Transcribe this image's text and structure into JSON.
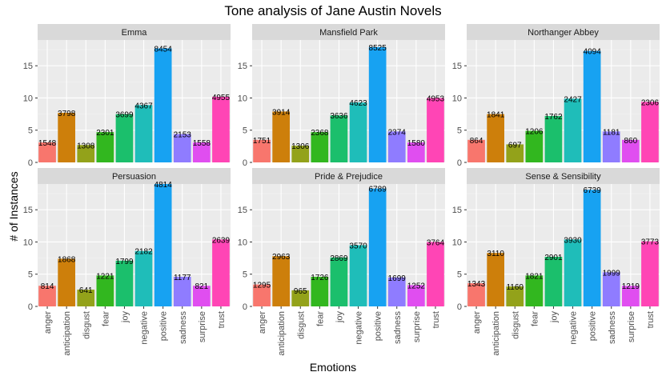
{
  "chart_data": {
    "type": "bar",
    "title": "Tone analysis of Jane Austin Novels",
    "xlabel": "Emotions",
    "ylabel": "# of Instances",
    "categories": [
      "anger",
      "anticipation",
      "disgust",
      "fear",
      "joy",
      "negative",
      "positive",
      "sadness",
      "surprise",
      "trust"
    ],
    "colors": [
      "#F8766D",
      "#D39200",
      "#93AA00",
      "#00BA38",
      "#00C19F",
      "#00B9E3",
      "#619CFF",
      "#8F7CFF",
      "#DB72FB",
      "#FF61C3"
    ],
    "display_colors": [
      "#F8766D",
      "#CD7F0B",
      "#93A21A",
      "#32B71F",
      "#1BBF6C",
      "#1FBDB9",
      "#17A2F2",
      "#8F7CFF",
      "#E04EF0",
      "#FF45B5"
    ],
    "ylim": [
      0,
      19
    ],
    "yticks": [
      0,
      5,
      10,
      15
    ],
    "grid": true,
    "panels": [
      {
        "name": "Emma",
        "values": [
          3.1,
          7.7,
          2.7,
          4.7,
          7.5,
          8.9,
          17.7,
          4.4,
          3.1,
          10.2
        ],
        "labels": [
          "1548",
          "3798",
          "1308",
          "2301",
          "3699",
          "4367",
          "8454",
          "2153",
          "1558",
          "4955"
        ]
      },
      {
        "name": "Mansfield Park",
        "values": [
          3.5,
          7.9,
          2.6,
          4.7,
          7.3,
          9.3,
          17.9,
          4.8,
          3.1,
          10.0
        ],
        "labels": [
          "1751",
          "3914",
          "1306",
          "2368",
          "3636",
          "4623",
          "8525",
          "2374",
          "1580",
          "4953"
        ]
      },
      {
        "name": "Northanger Abbey",
        "values": [
          3.5,
          7.5,
          2.8,
          4.9,
          7.2,
          9.9,
          17.3,
          4.8,
          3.5,
          9.4
        ],
        "labels": [
          "864",
          "1841",
          "697",
          "1206",
          "1762",
          "2427",
          "4094",
          "1181",
          "860",
          "2306"
        ]
      },
      {
        "name": "Persuasion",
        "values": [
          3.2,
          7.4,
          2.6,
          4.8,
          7.1,
          8.6,
          19.0,
          4.6,
          3.2,
          10.4
        ],
        "labels": [
          "814",
          "1868",
          "641",
          "1221",
          "1799",
          "2182",
          "4814",
          "1177",
          "821",
          "2639"
        ]
      },
      {
        "name": "Pride & Prejudice",
        "values": [
          3.4,
          7.8,
          2.5,
          4.6,
          7.6,
          9.5,
          18.3,
          4.5,
          3.3,
          10.0
        ],
        "labels": [
          "1295",
          "2963",
          "965",
          "1726",
          "2869",
          "3570",
          "6789",
          "1699",
          "1252",
          "3764"
        ]
      },
      {
        "name": "Sense & Sensibility",
        "values": [
          3.6,
          8.3,
          3.1,
          4.8,
          7.7,
          10.4,
          18.1,
          5.3,
          3.2,
          10.1
        ],
        "labels": [
          "1343",
          "3110",
          "1160",
          "1821",
          "2901",
          "3930",
          "6739",
          "1999",
          "1219",
          "3773"
        ]
      }
    ]
  }
}
